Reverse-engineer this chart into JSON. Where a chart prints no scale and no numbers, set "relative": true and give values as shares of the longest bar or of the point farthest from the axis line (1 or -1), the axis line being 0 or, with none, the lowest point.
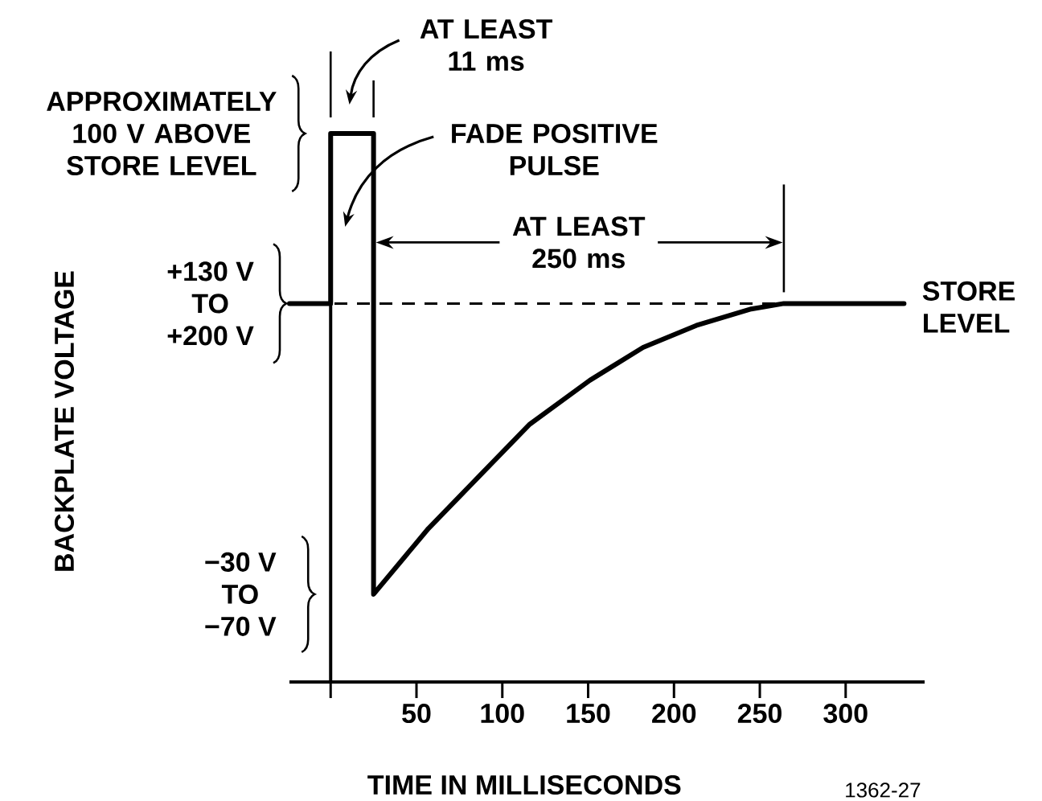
{
  "chart_data": {
    "type": "line",
    "xlabel": "TIME IN MILLISECONDS",
    "relative": true,
    "line_style": "solid",
    "color": "#000000",
    "x": [
      -24,
      0,
      0,
      25,
      25,
      57,
      88,
      116,
      151,
      182,
      213,
      245,
      264,
      334
    ],
    "values": [
      0.69,
      0.69,
      1,
      1,
      0.16,
      0.28,
      0.38,
      0.47,
      0.55,
      0.61,
      0.65,
      0.68,
      0.69,
      0.69
    ],
    "xlim": [
      -24,
      346
    ],
    "xticks": [
      {
        "value": 0,
        "label": null
      },
      50,
      100,
      150,
      200,
      250,
      300
    ],
    "ref_lines": [
      {
        "axis": "y",
        "value": 0.69,
        "line_style": "dashed",
        "color": "#000000"
      }
    ],
    "annotations": [
      {
        "text": "APPROXIMATELY 100 V ABOVE STORE LEVEL",
        "x": 0,
        "y": 1
      },
      {
        "text": "+130 V TO +200 V",
        "x": -24,
        "y": 0.69
      },
      "−30 V TO −70 V",
      {
        "text": "AT LEAST 11 ms",
        "x": 25,
        "y": 1
      },
      "FADE POSITIVE PULSE",
      "AT LEAST 250 ms",
      {
        "text": "STORE LEVEL",
        "x": 334,
        "y": 0.69
      },
      "1362-27",
      "BACKPLATE VOLTAGE"
    ]
  }
}
